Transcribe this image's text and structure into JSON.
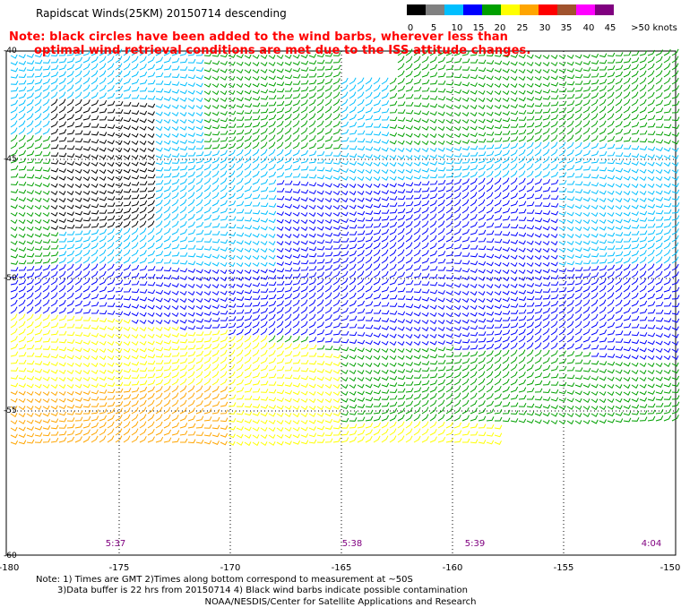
{
  "title": "Rapidscat Winds(25KM) 20150714 descending",
  "note": {
    "line1": "Note: black circles have been added to the wind barbs, wherever less than",
    "line2": "optimal wind retrieval conditions are met due to the ISS attitude changes."
  },
  "legend": {
    "labels": [
      "0",
      "5",
      "10",
      "15",
      "20",
      "25",
      "30",
      "35",
      "40",
      "45",
      ">50 knots"
    ],
    "colors": [
      "#000000",
      "#808080",
      "#00bfff",
      "#0000ff",
      "#00a000",
      "#ffff00",
      "#ffa500",
      "#ff0000",
      "#a0522d",
      "#ff00ff",
      "#800080"
    ]
  },
  "axes": {
    "lon_labels": [
      "-180",
      "-175",
      "-170",
      "-165",
      "-160",
      "-155",
      "-150"
    ],
    "lat_labels": [
      "-40",
      "-45",
      "-50",
      "-55",
      "-60"
    ]
  },
  "times": [
    "5:37",
    "5:38",
    "5:39",
    "4:04"
  ],
  "footnote": {
    "line1": "Note: 1) Times are GMT 2)Times along bottom correspond to measurement at ~50S",
    "line2": "3)Data buffer is 22 hrs from 20150714 4) Black wind barbs indicate possible contamination"
  },
  "credit": "NOAA/NESDIS/Center for Satellite Applications and Research"
}
